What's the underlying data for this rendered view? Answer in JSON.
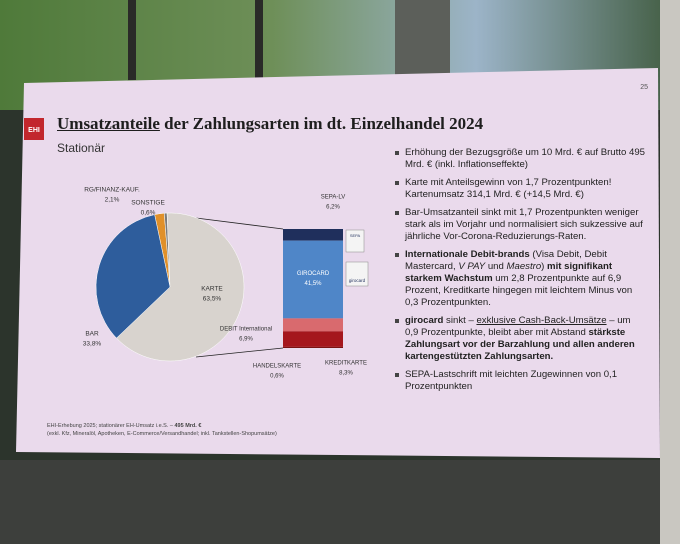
{
  "slide": {
    "page_number": "25",
    "logo": "EHI",
    "title_underlined": "Umsatzanteile",
    "title_rest": "der Zahlungsarten im dt. Einzelhandel 2024",
    "subtitle": "Stationär",
    "icon_labels": [
      "SEPA",
      "girocard"
    ],
    "bullets": [
      [
        {
          "text": "Erhöhung der Bezugsgröße um 10 Mrd. € auf Brutto 495 Mrd. € (inkl. Inflationseffekte)"
        }
      ],
      [
        {
          "text": "Karte mit Anteilsgewinn von 1,7 Prozentpunkten! Kartenumsatz 314,1 Mrd. € (+14,5 Mrd. €)"
        }
      ],
      [
        {
          "text": "Bar-Umsatzanteil sinkt mit 1,7 Prozentpunkten weniger stark als im Vorjahr und normalisiert sich sukzessive auf jährliche Vor-Corona-Reduzierungs-Raten."
        }
      ],
      [
        {
          "text": "Internationale Debit-brands",
          "bold": true
        },
        {
          "text": " (Visa Debit, Debit Mastercard, "
        },
        {
          "text": "V PAY",
          "italic": true
        },
        {
          "text": " und "
        },
        {
          "text": "Maestro",
          "italic": true
        },
        {
          "text": ") "
        },
        {
          "text": "mit signifikant starkem Wachstum",
          "bold": true
        },
        {
          "text": " um 2,8 Prozentpunkte auf 6,9 Prozent, Kreditkarte hingegen mit leichtem Minus von 0,3 Prozentpunkten."
        }
      ],
      [
        {
          "text": "girocard",
          "bold": true
        },
        {
          "text": " sinkt – "
        },
        {
          "text": "exklusive Cash-Back-Umsätze",
          "underline": true
        },
        {
          "text": " – um 0,9 Prozentpunkte, bleibt aber mit Abstand "
        },
        {
          "text": "stärkste Zahlungsart vor der Barzahlung und allen anderen kartengestützten Zahlungsarten.",
          "bold": true
        }
      ],
      [
        {
          "text": "SEPA-Lastschrift mit leichten Zugewinnen von 0,1 Prozentpunkten"
        }
      ]
    ],
    "footnote": [
      [
        {
          "text": "EHI-Erhebung 2025; stationärer EH-Umsatz i.e.S. – "
        },
        {
          "text": "495 Mrd. €",
          "bold": true
        }
      ],
      [
        {
          "text": "(exkl. Kfz, Mineralöl, Apotheken, E-Commerce/Versandhandel; inkl. Tankstellen-Shopumsätze)"
        }
      ]
    ]
  },
  "chart_data": {
    "type": "pie",
    "categories": [
      "RG/FINANZ-KAUF.",
      "SONSTIGE",
      "KARTE",
      "BAR"
    ],
    "values": [
      2.1,
      0.6,
      63.5,
      33.8
    ],
    "value_labels": [
      "2,1%",
      "0,6%",
      "63,5%",
      "33,8%"
    ],
    "colors": [
      "#e0902a",
      "#7b7b7b",
      "#d8d3ce",
      "#2e5d9c"
    ],
    "breakdown": {
      "categories": [
        "SEPA-LV",
        "GIROCARD",
        "DEBIT International",
        "KREDITKARTE",
        "HANDELSKARTE"
      ],
      "values": [
        6.2,
        41.5,
        6.9,
        8.3,
        0.6
      ],
      "value_labels": [
        "6,2%",
        "41,5%",
        "6,9%",
        "8,3%",
        "0,6%"
      ],
      "colors": [
        "#1f2f5c",
        "#4f86c8",
        "#d96a6e",
        "#a5171d",
        "#7a1212"
      ]
    }
  }
}
